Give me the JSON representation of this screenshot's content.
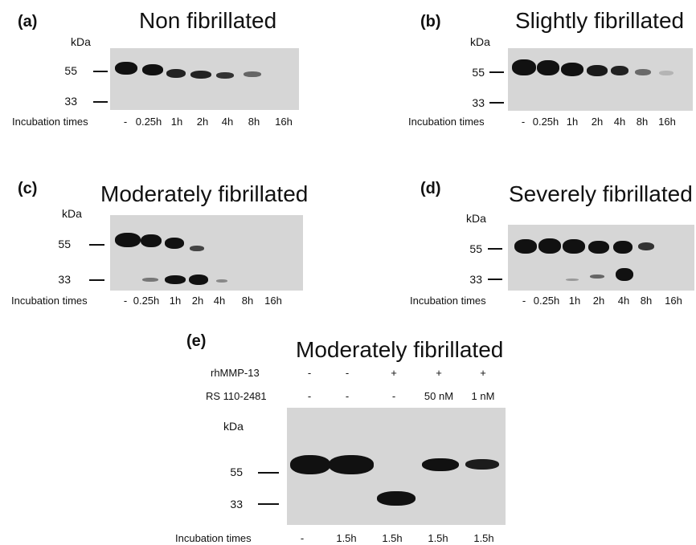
{
  "kda_label": "kDa",
  "incubation_label": "Incubation times",
  "panels": {
    "a": {
      "letter": "(a)",
      "title": "Non fibrillated",
      "mw_high": "55",
      "mw_low": "33",
      "lanes": [
        "-",
        "0.25h",
        "1h",
        "2h",
        "4h",
        "8h",
        "16h"
      ]
    },
    "b": {
      "letter": "(b)",
      "title": "Slightly fibrillated",
      "mw_high": "55",
      "mw_low": "33",
      "lanes": [
        "-",
        "0.25h",
        "1h",
        "2h",
        "4h",
        "8h",
        "16h"
      ]
    },
    "c": {
      "letter": "(c)",
      "title": "Moderately fibrillated",
      "mw_high": "55",
      "mw_low": "33",
      "lanes": [
        "-",
        "0.25h",
        "1h",
        "2h",
        "4h",
        "8h",
        "16h"
      ]
    },
    "d": {
      "letter": "(d)",
      "title": "Severely fibrillated",
      "mw_high": "55",
      "mw_low": "33",
      "lanes": [
        "-",
        "0.25h",
        "1h",
        "2h",
        "4h",
        "8h",
        "16h"
      ]
    },
    "e": {
      "letter": "(e)",
      "title": "Moderately fibrillated",
      "mw_high": "55",
      "mw_low": "33",
      "enzyme_label": "rhMMP-13",
      "enzyme": [
        "-",
        "-",
        "+",
        "+",
        "+"
      ],
      "inhibitor_label": "RS 110-2481",
      "inhibitor": [
        "-",
        "-",
        "-",
        "50 nM",
        "1 nM"
      ],
      "lanes": [
        "-",
        "1.5h",
        "1.5h",
        "1.5h",
        "1.5h"
      ]
    }
  }
}
